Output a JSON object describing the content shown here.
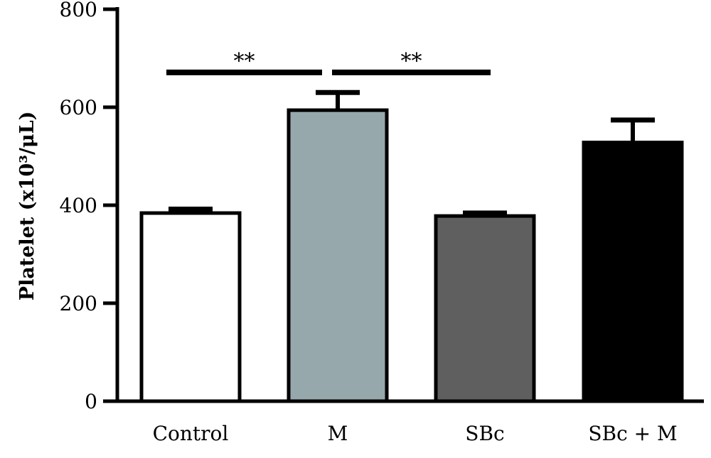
{
  "chart_data": {
    "type": "bar",
    "title": "",
    "xlabel": "",
    "ylabel": "Platelet (x10³/μL)",
    "ylim": [
      0,
      800
    ],
    "yticks": [
      0,
      200,
      400,
      600,
      800
    ],
    "ytick_labels": [
      "0",
      "200",
      "400",
      "600",
      "800"
    ],
    "categories": [
      "Control",
      "M",
      "SBc",
      "SBc + M"
    ],
    "values": [
      384,
      594,
      378,
      528
    ],
    "errors": [
      8,
      36,
      6,
      46
    ],
    "colors": [
      "#ffffff",
      "#97a8ad",
      "#5f5f5f",
      "#000000"
    ],
    "edge_color": "#000000",
    "grid": false,
    "legend": "none",
    "significance": [
      {
        "from": 0,
        "to": 1,
        "label": "**",
        "y": 671
      },
      {
        "from": 1,
        "to": 2,
        "label": "**",
        "y": 671
      }
    ]
  }
}
